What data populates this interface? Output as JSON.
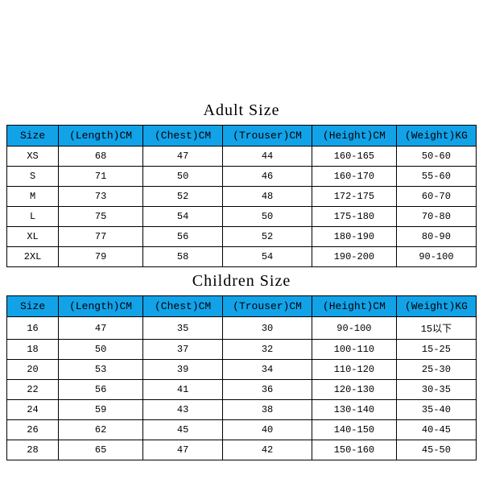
{
  "adult": {
    "title": "Adult Size",
    "columns": [
      "Size",
      "(Length)CM",
      "(Chest)CM",
      "(Trouser)CM",
      "(Height)CM",
      "(Weight)KG"
    ],
    "rows": [
      [
        "XS",
        "68",
        "47",
        "44",
        "160-165",
        "50-60"
      ],
      [
        "S",
        "71",
        "50",
        "46",
        "160-170",
        "55-60"
      ],
      [
        "M",
        "73",
        "52",
        "48",
        "172-175",
        "60-70"
      ],
      [
        "L",
        "75",
        "54",
        "50",
        "175-180",
        "70-80"
      ],
      [
        "XL",
        "77",
        "56",
        "52",
        "180-190",
        "80-90"
      ],
      [
        "2XL",
        "79",
        "58",
        "54",
        "190-200",
        "90-100"
      ]
    ]
  },
  "children": {
    "title": "Children Size",
    "columns": [
      "Size",
      "(Length)CM",
      "(Chest)CM",
      "(Trouser)CM",
      "(Height)CM",
      "(Weight)KG"
    ],
    "rows": [
      [
        "16",
        "47",
        "35",
        "30",
        "90-100",
        "15以下"
      ],
      [
        "18",
        "50",
        "37",
        "32",
        "100-110",
        "15-25"
      ],
      [
        "20",
        "53",
        "39",
        "34",
        "110-120",
        "25-30"
      ],
      [
        "22",
        "56",
        "41",
        "36",
        "120-130",
        "30-35"
      ],
      [
        "24",
        "59",
        "43",
        "38",
        "130-140",
        "35-40"
      ],
      [
        "26",
        "62",
        "45",
        "40",
        "140-150",
        "40-45"
      ],
      [
        "28",
        "65",
        "47",
        "42",
        "150-160",
        "45-50"
      ]
    ]
  },
  "style": {
    "header_bg": "#12a2e8",
    "border_color": "#000000",
    "background_color": "#ffffff",
    "title_fontsize": 20,
    "header_fontsize": 13,
    "cell_fontsize": 12,
    "column_widths_pct": [
      11,
      18,
      17,
      19,
      18,
      17
    ]
  }
}
